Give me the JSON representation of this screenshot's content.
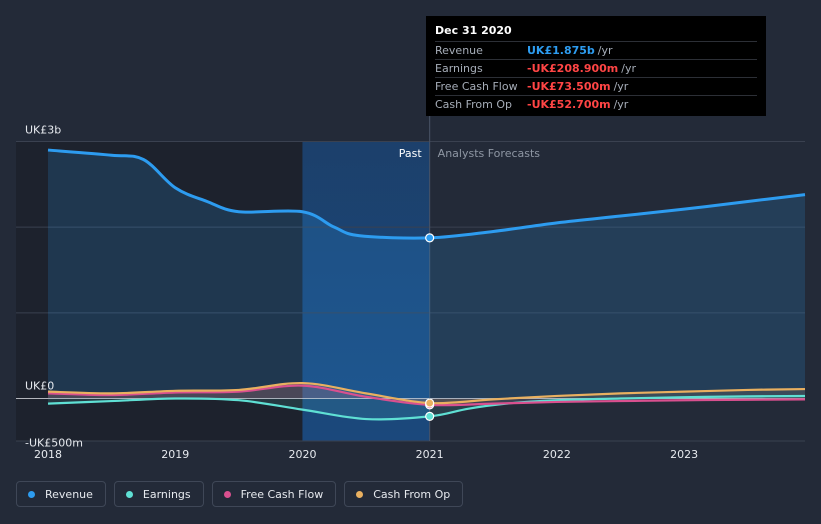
{
  "tooltip": {
    "date": "Dec 31 2020",
    "rows": [
      {
        "label": "Revenue",
        "value": "UK£1.875b",
        "unit": "/yr",
        "color": "#2d9cf0"
      },
      {
        "label": "Earnings",
        "value": "-UK£208.900m",
        "unit": "/yr",
        "color": "#ff4545"
      },
      {
        "label": "Free Cash Flow",
        "value": "-UK£73.500m",
        "unit": "/yr",
        "color": "#ff4545"
      },
      {
        "label": "Cash From Op",
        "value": "-UK£52.700m",
        "unit": "/yr",
        "color": "#ff4545"
      }
    ]
  },
  "legend": [
    {
      "label": "Revenue",
      "color": "#2d9cf0"
    },
    {
      "label": "Earnings",
      "color": "#5fe0d4"
    },
    {
      "label": "Free Cash Flow",
      "color": "#d9508f"
    },
    {
      "label": "Cash From Op",
      "color": "#e9b060"
    }
  ],
  "chart_data": {
    "type": "line",
    "y_axis_labels": [
      "UK£3b",
      "UK£0",
      "-UK£500m"
    ],
    "ylim": [
      -500,
      3000
    ],
    "x_ticks": [
      2018,
      2019,
      2020,
      2021,
      2022,
      2023
    ],
    "xlim": [
      2018,
      2023.95
    ],
    "past_label": "Past",
    "forecast_label": "Analysts Forecasts",
    "divider_x": 2021,
    "shaded_start": 2020,
    "highlight_x": 2021,
    "series": [
      {
        "name": "Revenue",
        "color": "#2d9cf0",
        "x": [
          2018,
          2018.5,
          2018.75,
          2019,
          2019.25,
          2019.5,
          2020,
          2020.25,
          2020.45,
          2021,
          2021.5,
          2022,
          2022.5,
          2023,
          2023.5,
          2023.95
        ],
        "y": [
          2900,
          2840,
          2790,
          2460,
          2300,
          2180,
          2180,
          2000,
          1900,
          1875,
          1950,
          2050,
          2130,
          2210,
          2300,
          2380
        ]
      },
      {
        "name": "Earnings",
        "color": "#5fe0d4",
        "x": [
          2018,
          2018.5,
          2019,
          2019.5,
          2020,
          2020.5,
          2021,
          2021.3,
          2021.6,
          2022,
          2022.5,
          2023,
          2023.5,
          2023.95
        ],
        "y": [
          -60,
          -30,
          0,
          -20,
          -130,
          -240,
          -209,
          -120,
          -60,
          -20,
          0,
          15,
          25,
          30
        ]
      },
      {
        "name": "Free Cash Flow",
        "color": "#d9508f",
        "x": [
          2018,
          2018.5,
          2019,
          2019.5,
          2020,
          2020.5,
          2021,
          2021.5,
          2022,
          2022.5,
          2023,
          2023.5,
          2023.95
        ],
        "y": [
          60,
          40,
          70,
          80,
          150,
          20,
          -74,
          -60,
          -40,
          -30,
          -20,
          -15,
          -10
        ]
      },
      {
        "name": "Cash From Op",
        "color": "#e9b060",
        "x": [
          2018,
          2018.5,
          2019,
          2019.5,
          2020,
          2020.5,
          2021,
          2021.5,
          2022,
          2022.5,
          2023,
          2023.5,
          2023.95
        ],
        "y": [
          80,
          60,
          90,
          100,
          180,
          60,
          -53,
          -10,
          30,
          60,
          80,
          100,
          110
        ]
      }
    ]
  }
}
